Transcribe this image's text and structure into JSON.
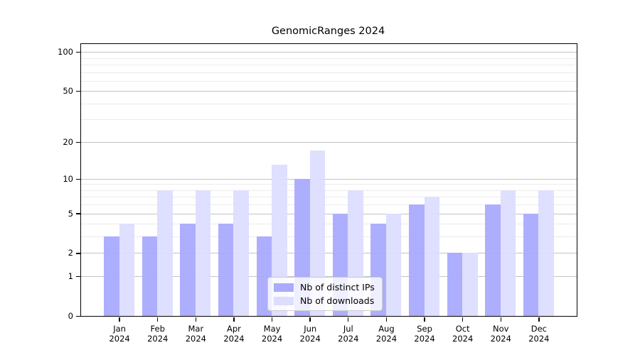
{
  "title": "GenomicRanges 2024",
  "chart_data": {
    "type": "bar",
    "title": "GenomicRanges 2024",
    "categories": [
      "Jan",
      "Feb",
      "Mar",
      "Apr",
      "May",
      "Jun",
      "Jul",
      "Aug",
      "Sep",
      "Oct",
      "Nov",
      "Dec"
    ],
    "x_year_label": "2024",
    "series": [
      {
        "name": "Nb of distinct IPs",
        "color": "#aaaaff",
        "values": [
          3,
          3,
          4,
          4,
          3,
          10,
          5,
          4,
          6,
          2,
          6,
          5
        ]
      },
      {
        "name": "Nb of downloads",
        "color": "#ddddff",
        "values": [
          4,
          8,
          8,
          8,
          13,
          17,
          8,
          5,
          7,
          2,
          8,
          8
        ]
      }
    ],
    "yscale": "log1p",
    "ylim": [
      0,
      115
    ],
    "yticks_major": [
      0,
      1,
      2,
      5,
      10,
      20,
      50,
      100
    ],
    "yticks_minor": [
      3,
      4,
      6,
      7,
      8,
      9,
      30,
      40,
      60,
      70,
      80,
      90
    ],
    "grid": true,
    "legend_position": "lower center",
    "colors": {
      "grid_major": "#c3c3c3",
      "grid_minor": "#ebebeb",
      "spine": "#000000",
      "background": "#ffffff"
    }
  }
}
